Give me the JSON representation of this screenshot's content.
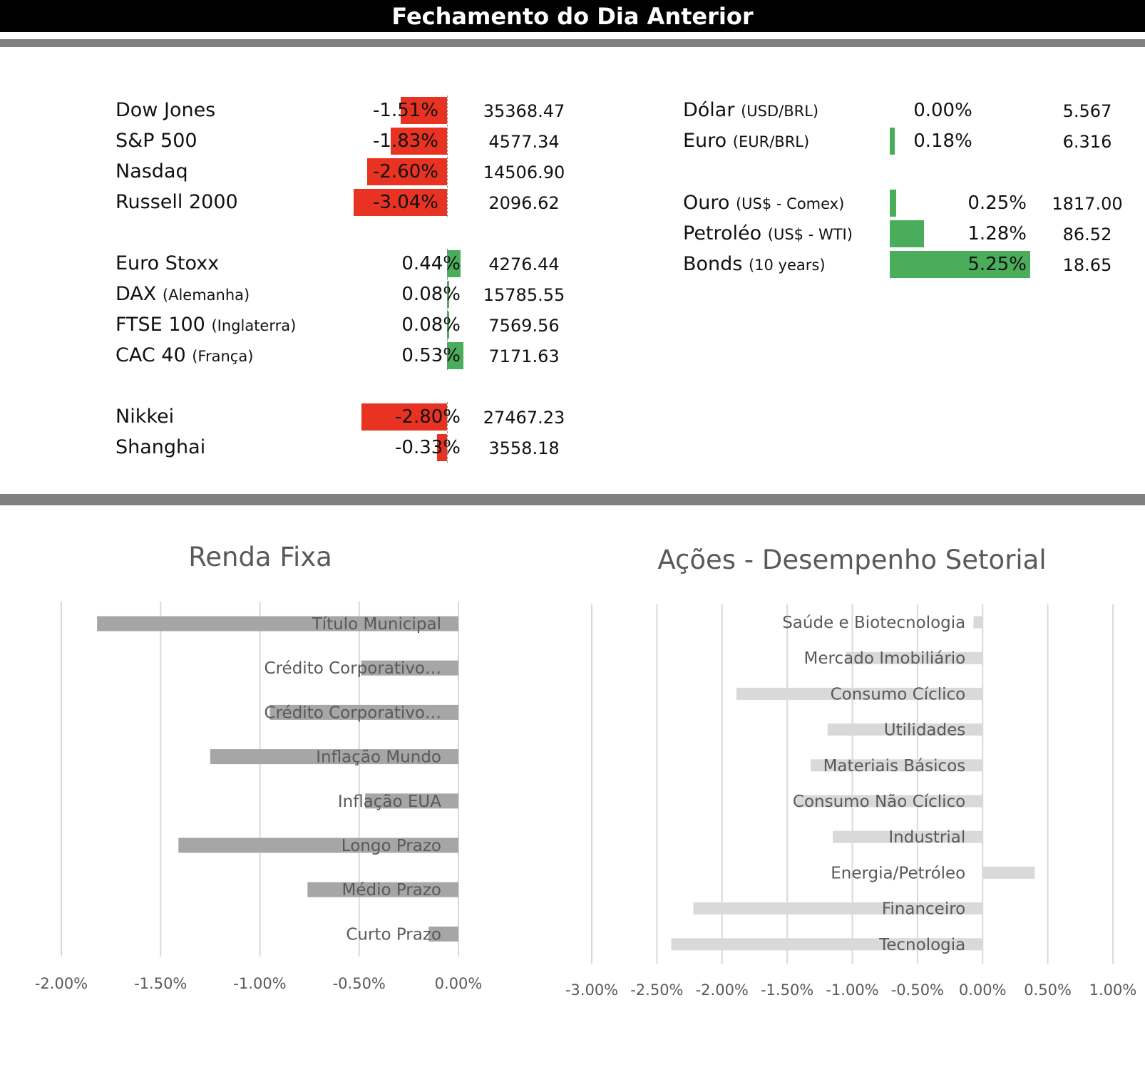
{
  "header": {
    "title": "Fechamento do Dia Anterior"
  },
  "markets": {
    "groups": [
      {
        "rows": [
          {
            "name": "Dow Jones",
            "sub": "",
            "pct": -1.51,
            "pct_label": "-1.51%",
            "value": "35368.47"
          },
          {
            "name": "S&P 500",
            "sub": "",
            "pct": -1.83,
            "pct_label": "-1.83%",
            "value": "4577.34"
          },
          {
            "name": "Nasdaq",
            "sub": "",
            "pct": -2.6,
            "pct_label": "-2.60%",
            "value": "14506.90"
          },
          {
            "name": "Russell 2000",
            "sub": "",
            "pct": -3.04,
            "pct_label": "-3.04%",
            "value": "2096.62"
          }
        ]
      },
      {
        "rows": [
          {
            "name": "Euro Stoxx",
            "sub": "",
            "pct": 0.44,
            "pct_label": "0.44%",
            "value": "4276.44"
          },
          {
            "name": "DAX",
            "sub": "(Alemanha)",
            "pct": 0.08,
            "pct_label": "0.08%",
            "value": "15785.55"
          },
          {
            "name": "FTSE 100",
            "sub": "(Inglaterra)",
            "pct": 0.08,
            "pct_label": "0.08%",
            "value": "7569.56"
          },
          {
            "name": "CAC 40",
            "sub": "(França)",
            "pct": 0.53,
            "pct_label": "0.53%",
            "value": "7171.63"
          }
        ]
      },
      {
        "rows": [
          {
            "name": "Nikkei",
            "sub": "",
            "pct": -2.8,
            "pct_label": "-2.80%",
            "value": "27467.23"
          },
          {
            "name": "Shanghai",
            "sub": "",
            "pct": -0.33,
            "pct_label": "-0.33%",
            "value": "3558.18"
          }
        ]
      }
    ],
    "right_groups": [
      {
        "rows": [
          {
            "name": "Dólar",
            "sub": "(USD/BRL)",
            "pct": 0.0,
            "pct_label": "0.00%",
            "value": "5.567"
          },
          {
            "name": "Euro",
            "sub": "(EUR/BRL)",
            "pct": 0.18,
            "pct_label": "0.18%",
            "value": "6.316"
          }
        ]
      },
      {
        "rows": [
          {
            "name": "Ouro",
            "sub": "(US$ - Comex)",
            "pct": 0.25,
            "pct_label": "0.25%",
            "value": "1817.00"
          },
          {
            "name": "Petroléo",
            "sub": "(US$ - WTI)",
            "pct": 1.28,
            "pct_label": "1.28%",
            "value": "86.52"
          },
          {
            "name": "Bonds",
            "sub": "(10 years)",
            "pct": 5.25,
            "pct_label": "5.25%",
            "value": "18.65"
          }
        ]
      }
    ],
    "colors": {
      "negative": "#e83323",
      "positive": "#4aad5b"
    }
  },
  "chart_data": [
    {
      "type": "bar",
      "orientation": "horizontal",
      "title": "Renda Fixa",
      "categories": [
        "Título Municipal",
        "Crédito Corporativo…",
        "Crédito Corporativo…",
        "Inflação Mundo",
        "Inflação EUA",
        "Longo Prazo",
        "Médio Prazo",
        "Curto Prazo"
      ],
      "values": [
        -1.82,
        -0.49,
        -0.95,
        -1.25,
        -0.47,
        -1.41,
        -0.76,
        -0.15
      ],
      "xlim": [
        -2.0,
        0.0
      ],
      "ticks": [
        "-2.00%",
        "-1.50%",
        "-1.00%",
        "-0.50%",
        "0.00%"
      ],
      "color": "#a6a6a6",
      "grid": true
    },
    {
      "type": "bar",
      "orientation": "horizontal",
      "title": "Ações - Desempenho Setorial",
      "categories": [
        "Saúde e Biotecnologia",
        "Mercado Imobiliário",
        "Consumo Cíclico",
        "Utilidades",
        "Materiais Básicos",
        "Consumo Não Cíclico",
        "Industrial",
        "Energia/Petróleo",
        "Financeiro",
        "Tecnologia"
      ],
      "values": [
        -0.07,
        -1.05,
        -1.89,
        -1.19,
        -1.32,
        -1.43,
        -1.15,
        0.4,
        -2.22,
        -2.39
      ],
      "xlim": [
        -3.0,
        1.0
      ],
      "ticks": [
        "-3.00%",
        "-2.50%",
        "-2.00%",
        "-1.50%",
        "-1.00%",
        "-0.50%",
        "0.00%",
        "0.50%",
        "1.00%"
      ],
      "color": "#d9d9d9",
      "grid": true
    }
  ]
}
